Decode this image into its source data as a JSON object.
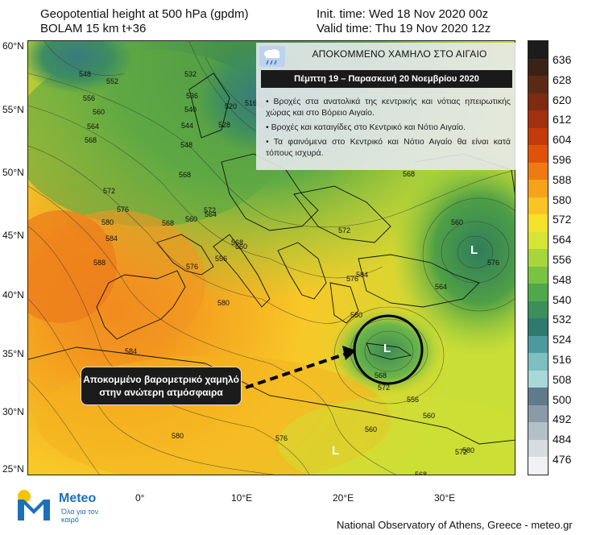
{
  "header": {
    "title": "Geopotential height at 500 hPa (gpdm)",
    "model": "BOLAM 15 km t+36",
    "init_time": "Init. time: Wed 18 Nov 2020 00z",
    "valid_time": "Valid time: Thu 19 Nov 2020 12z"
  },
  "map": {
    "lat_labels": [
      "60°N",
      "55°N",
      "50°N",
      "45°N",
      "40°N",
      "35°N",
      "30°N",
      "25°N"
    ],
    "lon_labels": [
      "0°",
      "10°E",
      "20°E",
      "30°E"
    ],
    "low_marker": "L",
    "contour_labels": [
      "548",
      "552",
      "556",
      "560",
      "564",
      "568",
      "532",
      "536",
      "540",
      "544",
      "548",
      "520",
      "516",
      "512",
      "528",
      "572",
      "576",
      "580",
      "584",
      "588",
      "568",
      "564",
      "560",
      "568",
      "572",
      "568",
      "560",
      "556",
      "576",
      "580",
      "568",
      "572",
      "576",
      "580",
      "584",
      "560",
      "564",
      "568",
      "572",
      "576",
      "584",
      "580",
      "560",
      "556",
      "560",
      "572",
      "568",
      "576",
      "580"
    ]
  },
  "info_box": {
    "title": "ΑΠΟΚΟΜΜΕΝΟ ΧΑΜΗΛΟ ΣΤΟ ΑΙΓΑΙΟ",
    "subtitle": "Πέμπτη 19 – Παρασκευή 20 Νοεμβρίου 2020",
    "bullets": [
      "• Βροχές στα ανατολικά της κεντρικής και νότιας ηπειρωτικής χώρας και στο Βόρειο Αιγαίο.",
      "• Βροχές και καταιγίδες στο Κεντρικό και Νότιο Αιγαίο.",
      "• Τα φαινόμενα στο Κεντρικό και Νότιο Αιγαίο θα είναι κατά τόπους ισχυρά."
    ]
  },
  "callout": {
    "line1": "Αποκομμένο βαρομετρικό χαμηλό",
    "line2": "στην ανώτερη ατμόσφαιρα"
  },
  "legend": {
    "ticks": [
      "636",
      "628",
      "620",
      "612",
      "604",
      "596",
      "588",
      "580",
      "572",
      "564",
      "556",
      "548",
      "540",
      "532",
      "524",
      "516",
      "508",
      "500",
      "492",
      "484",
      "476"
    ],
    "colors": [
      "#1c1c1c",
      "#3b2217",
      "#5b2a15",
      "#7d2c12",
      "#a0300f",
      "#c43a0b",
      "#e0520a",
      "#f07a12",
      "#f6a21a",
      "#f9c524",
      "#f5e22c",
      "#d6e436",
      "#a8d63a",
      "#78c342",
      "#4fa94a",
      "#3b8f5a",
      "#2d7a6e",
      "#4c9aa0",
      "#7cc0c2",
      "#a9d8d8",
      "#5f7a8a",
      "#8a9aa6",
      "#b4c0c8",
      "#d6dde2",
      "#f0f2f4"
    ]
  },
  "footer": {
    "text": "National Observatory of Athens, Greece - meteo.gr",
    "logo_name": "Meteo",
    "logo_tagline": "Όλα για τον καιρό"
  }
}
